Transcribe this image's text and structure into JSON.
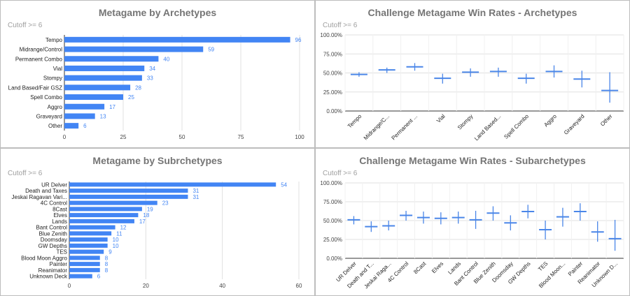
{
  "colors": {
    "bar": "#4285f4",
    "whisker": "#4a86e8",
    "label": "#4285f4",
    "grid": "#e0e0e0",
    "axis": "#333333",
    "text": "#222222",
    "tick": "#444444"
  },
  "chart_data": [
    {
      "type": "bar",
      "orientation": "horizontal",
      "title": "Metagame by Archetypes",
      "subtitle": "Cutoff >= 6",
      "categories": [
        "Tempo",
        "Midrange/Control",
        "Permanent Combo",
        "Vial",
        "Stompy",
        "Land Based/Fair GSZ",
        "Spell Combo",
        "Aggro",
        "Graveyard",
        "Other"
      ],
      "values": [
        96,
        59,
        40,
        34,
        33,
        28,
        25,
        17,
        13,
        6
      ],
      "xlim": [
        0,
        100
      ],
      "xticks": [
        0,
        25,
        50,
        75,
        100
      ],
      "grid": true,
      "data_labels": true
    },
    {
      "type": "candlestick",
      "title": "Challenge Metagame Win Rates - Archetypes",
      "subtitle": "Cutoff >= 6",
      "categories": [
        "Tempo",
        "Midrange/C...",
        "Permanent ...",
        "Vial",
        "Stompy",
        "Land Based...",
        "Spell Combo",
        "Aggro",
        "Graveyard",
        "Other"
      ],
      "values": [
        48,
        54,
        58,
        43,
        51,
        52,
        43,
        52,
        42,
        27
      ],
      "low": [
        45,
        50,
        53,
        36,
        45,
        45,
        36,
        44,
        31,
        11
      ],
      "high": [
        51,
        57,
        63,
        49,
        56,
        57,
        49,
        60,
        53,
        51
      ],
      "ylim": [
        0,
        100
      ],
      "yticks": [
        "0.00%",
        "25.00%",
        "50.00%",
        "75.00%",
        "100.00%"
      ],
      "grid": true
    },
    {
      "type": "bar",
      "orientation": "horizontal",
      "title": "Metagame by Subrchetypes",
      "subtitle": "Cutoff >= 6",
      "categories": [
        "UR Delver",
        "Death and Taxes",
        "Jeskai Ragavan Vari...",
        "4C Control",
        "8Cast",
        "Elves",
        "Lands",
        "Bant Control",
        "Blue Zenith",
        "Doomsday",
        "GW Depths",
        "TES",
        "Blood Moon Aggro",
        "Painter",
        "Reanimator",
        "Unknown Deck"
      ],
      "values": [
        54,
        31,
        31,
        23,
        19,
        18,
        17,
        12,
        11,
        10,
        10,
        9,
        8,
        8,
        8,
        6
      ],
      "xlim": [
        0,
        60
      ],
      "xticks": [
        0,
        20,
        40,
        60
      ],
      "grid": true,
      "data_labels": true
    },
    {
      "type": "candlestick",
      "title": "Challenge Metagame Win Rates - Subarchetypes",
      "subtitle": "Cutoff >= 6",
      "categories": [
        "UR Delver",
        "Death and T...",
        "Jeskai Raga...",
        "4C Control",
        "8Cast",
        "Elves",
        "Lands",
        "Bant Control",
        "Blue Zenith",
        "Doomsday",
        "GW Depths",
        "TES",
        "Blood Moon...",
        "Painter",
        "Reanimator",
        "Unknown D..."
      ],
      "values": [
        51,
        42,
        43,
        57,
        54,
        53,
        54,
        51,
        60,
        47,
        62,
        38,
        55,
        62,
        35,
        26
      ],
      "low": [
        45,
        35,
        37,
        50,
        46,
        45,
        46,
        39,
        50,
        37,
        53,
        25,
        42,
        50,
        22,
        10
      ],
      "high": [
        56,
        49,
        50,
        63,
        62,
        61,
        62,
        63,
        69,
        57,
        71,
        50,
        67,
        73,
        49,
        51
      ],
      "ylim": [
        0,
        100
      ],
      "yticks": [
        "0.00%",
        "25.00%",
        "50.00%",
        "75.00%",
        "100.00%"
      ],
      "grid": true
    }
  ]
}
